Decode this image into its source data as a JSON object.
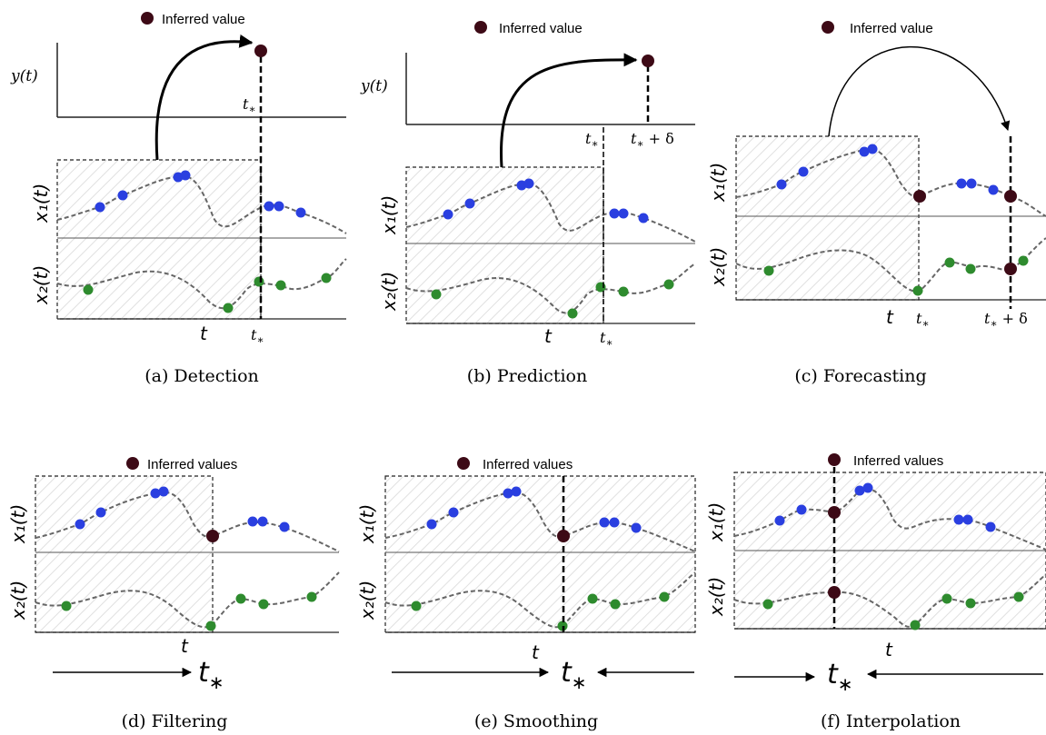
{
  "colors": {
    "inferred_dot": "#3d0a16",
    "x1_dots": "#2a3fe0",
    "x2_dots": "#2e8b2e",
    "curve": "#666666",
    "frame": "#222222",
    "hatch": "#e3e3e3"
  },
  "labels": {
    "y": "y(t)",
    "x1": "x₁(t)",
    "x2": "x₂(t)",
    "t": "t",
    "tstar": "t",
    "star": "∗",
    "delta": " + δ"
  },
  "panels": [
    {
      "id": "a",
      "caption": "(a) Detection",
      "legend": "Inferred value"
    },
    {
      "id": "b",
      "caption": "(b) Prediction",
      "legend": "Inferred value"
    },
    {
      "id": "c",
      "caption": "(c) Forecasting",
      "legend": "Inferred value"
    },
    {
      "id": "d",
      "caption": "(d) Filtering",
      "legend": "Inferred values"
    },
    {
      "id": "e",
      "caption": "(e) Smoothing",
      "legend": "Inferred values"
    },
    {
      "id": "f",
      "caption": "(f) Interpolation",
      "legend": "Inferred values"
    }
  ]
}
